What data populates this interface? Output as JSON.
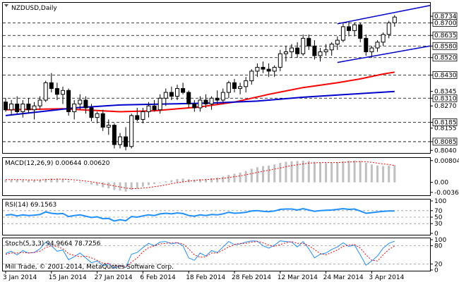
{
  "chart_data": [
    {
      "type": "candlestick",
      "title": "NZDUSD,Daily",
      "price_axis_ticks": [
        "0.8734",
        "0.8700",
        "0.8635",
        "0.8580",
        "0.8520",
        "0.8430",
        "0.8345",
        "0.8310",
        "0.8270",
        "0.8185",
        "0.8155",
        "0.8085",
        "0.8040"
      ],
      "highlighted_levels": [
        "0.8734",
        "0.8700",
        "0.8635",
        "0.8580",
        "0.8520",
        "0.8430",
        "0.8310",
        "0.8185",
        "0.8085"
      ],
      "horizontal_levels": [
        0.87,
        0.8635,
        0.858,
        0.852,
        0.843,
        0.831,
        0.8185,
        0.8085
      ],
      "ylim": [
        0.803,
        0.88
      ],
      "x_labels": [
        "3 Jan 2014",
        "15 Jan 2014",
        "27 Jan 2014",
        "6 Feb 2014",
        "18 Feb 2014",
        "28 Feb 2014",
        "12 Mar 2014",
        "24 Mar 2014",
        "3 Apr 2014"
      ],
      "x_label_index": [
        0,
        8,
        16,
        24,
        32,
        40,
        48,
        56,
        64
      ],
      "candles": [
        [
          0.829,
          0.831,
          0.824,
          0.825
        ],
        [
          0.825,
          0.83,
          0.822,
          0.828
        ],
        [
          0.828,
          0.832,
          0.823,
          0.824
        ],
        [
          0.824,
          0.83,
          0.821,
          0.828
        ],
        [
          0.828,
          0.831,
          0.823,
          0.825
        ],
        [
          0.825,
          0.829,
          0.82,
          0.827
        ],
        [
          0.827,
          0.832,
          0.825,
          0.83
        ],
        [
          0.83,
          0.84,
          0.829,
          0.839
        ],
        [
          0.839,
          0.844,
          0.834,
          0.836
        ],
        [
          0.836,
          0.839,
          0.83,
          0.833
        ],
        [
          0.833,
          0.837,
          0.828,
          0.835
        ],
        [
          0.835,
          0.836,
          0.822,
          0.824
        ],
        [
          0.824,
          0.83,
          0.82,
          0.828
        ],
        [
          0.828,
          0.833,
          0.825,
          0.83
        ],
        [
          0.83,
          0.832,
          0.823,
          0.826
        ],
        [
          0.826,
          0.828,
          0.819,
          0.821
        ],
        [
          0.821,
          0.824,
          0.818,
          0.823
        ],
        [
          0.823,
          0.825,
          0.814,
          0.816
        ],
        [
          0.816,
          0.82,
          0.812,
          0.817
        ],
        [
          0.817,
          0.818,
          0.805,
          0.807
        ],
        [
          0.807,
          0.813,
          0.805,
          0.811
        ],
        [
          0.811,
          0.816,
          0.804,
          0.806
        ],
        [
          0.806,
          0.823,
          0.805,
          0.822
        ],
        [
          0.822,
          0.826,
          0.819,
          0.82
        ],
        [
          0.82,
          0.826,
          0.818,
          0.824
        ],
        [
          0.824,
          0.829,
          0.821,
          0.827
        ],
        [
          0.827,
          0.83,
          0.824,
          0.825
        ],
        [
          0.825,
          0.833,
          0.823,
          0.831
        ],
        [
          0.831,
          0.836,
          0.827,
          0.834
        ],
        [
          0.834,
          0.837,
          0.83,
          0.832
        ],
        [
          0.832,
          0.838,
          0.83,
          0.836
        ],
        [
          0.836,
          0.839,
          0.833,
          0.834
        ],
        [
          0.834,
          0.835,
          0.826,
          0.828
        ],
        [
          0.828,
          0.83,
          0.824,
          0.826
        ],
        [
          0.826,
          0.832,
          0.824,
          0.83
        ],
        [
          0.83,
          0.833,
          0.826,
          0.828
        ],
        [
          0.828,
          0.832,
          0.825,
          0.831
        ],
        [
          0.831,
          0.835,
          0.828,
          0.83
        ],
        [
          0.83,
          0.836,
          0.828,
          0.834
        ],
        [
          0.834,
          0.84,
          0.831,
          0.839
        ],
        [
          0.839,
          0.841,
          0.834,
          0.836
        ],
        [
          0.836,
          0.839,
          0.833,
          0.837
        ],
        [
          0.837,
          0.842,
          0.834,
          0.84
        ],
        [
          0.84,
          0.846,
          0.838,
          0.845
        ],
        [
          0.845,
          0.849,
          0.842,
          0.847
        ],
        [
          0.847,
          0.85,
          0.844,
          0.846
        ],
        [
          0.846,
          0.849,
          0.842,
          0.845
        ],
        [
          0.845,
          0.848,
          0.842,
          0.847
        ],
        [
          0.847,
          0.856,
          0.845,
          0.854
        ],
        [
          0.854,
          0.858,
          0.85,
          0.855
        ],
        [
          0.855,
          0.859,
          0.852,
          0.857
        ],
        [
          0.857,
          0.86,
          0.852,
          0.854
        ],
        [
          0.854,
          0.864,
          0.853,
          0.862
        ],
        [
          0.862,
          0.864,
          0.856,
          0.858
        ],
        [
          0.858,
          0.861,
          0.851,
          0.853
        ],
        [
          0.853,
          0.857,
          0.85,
          0.855
        ],
        [
          0.855,
          0.859,
          0.853,
          0.856
        ],
        [
          0.856,
          0.86,
          0.853,
          0.859
        ],
        [
          0.859,
          0.863,
          0.856,
          0.861
        ],
        [
          0.861,
          0.87,
          0.86,
          0.868
        ],
        [
          0.868,
          0.871,
          0.863,
          0.866
        ],
        [
          0.866,
          0.87,
          0.863,
          0.869
        ],
        [
          0.869,
          0.87,
          0.86,
          0.862
        ],
        [
          0.862,
          0.864,
          0.853,
          0.855
        ],
        [
          0.855,
          0.858,
          0.852,
          0.857
        ],
        [
          0.857,
          0.861,
          0.855,
          0.86
        ],
        [
          0.86,
          0.865,
          0.858,
          0.864
        ],
        [
          0.864,
          0.871,
          0.862,
          0.87
        ],
        [
          0.87,
          0.874,
          0.868,
          0.873
        ]
      ],
      "trend_lines": [
        {
          "from": [
            58,
            0.8695
          ],
          "to": [
            75,
            0.879
          ]
        },
        {
          "from": [
            58,
            0.8495
          ],
          "to": [
            75,
            0.858
          ]
        }
      ],
      "moving_averages": [
        {
          "color": "#ff0000",
          "values": [
            [
              0,
              0.825
            ],
            [
              10,
              0.8255
            ],
            [
              20,
              0.824
            ],
            [
              26,
              0.8245
            ],
            [
              34,
              0.8265
            ],
            [
              40,
              0.829
            ],
            [
              46,
              0.833
            ],
            [
              52,
              0.8365
            ],
            [
              58,
              0.839
            ],
            [
              62,
              0.841
            ],
            [
              66,
              0.8435
            ],
            [
              68,
              0.8445
            ]
          ]
        },
        {
          "color": "#0000cc",
          "values": [
            [
              0,
              0.822
            ],
            [
              6,
              0.824
            ],
            [
              12,
              0.826
            ],
            [
              20,
              0.8275
            ],
            [
              28,
              0.828
            ],
            [
              36,
              0.8285
            ],
            [
              44,
              0.8295
            ],
            [
              52,
              0.8315
            ],
            [
              60,
              0.833
            ],
            [
              68,
              0.8345
            ]
          ]
        }
      ]
    },
    {
      "type": "bar",
      "title": "MACD(12,26,9) 0.00644 0.00620",
      "ticks": [
        "0.00804",
        "0.00",
        "-0.00368"
      ],
      "ylim": [
        -0.0045,
        0.0085
      ],
      "values": [
        0.001,
        0.0011,
        0.001,
        0.0009,
        0.0008,
        0.0008,
        0.0009,
        0.0013,
        0.0015,
        0.0014,
        0.0012,
        0.0006,
        0.0003,
        0.0002,
        -0.0002,
        -0.0008,
        -0.0012,
        -0.0018,
        -0.0022,
        -0.0028,
        -0.003,
        -0.0034,
        -0.0028,
        -0.0022,
        -0.0016,
        -0.001,
        -0.0006,
        -0.0002,
        0.0004,
        0.0008,
        0.0012,
        0.0014,
        0.0012,
        0.001,
        0.0012,
        0.0013,
        0.0016,
        0.0018,
        0.0022,
        0.0028,
        0.0032,
        0.0036,
        0.0042,
        0.005,
        0.0056,
        0.006,
        0.0062,
        0.0066,
        0.0072,
        0.0076,
        0.0078,
        0.0079,
        0.008,
        0.0079,
        0.0076,
        0.0073,
        0.0071,
        0.0072,
        0.0074,
        0.0078,
        0.008,
        0.0081,
        0.0079,
        0.0072,
        0.0066,
        0.0062,
        0.006,
        0.0062,
        0.0064
      ],
      "signal": [
        0.001,
        0.001,
        0.001,
        0.001,
        0.0009,
        0.0009,
        0.0009,
        0.001,
        0.0011,
        0.0012,
        0.0012,
        0.0011,
        0.0009,
        0.0007,
        0.0005,
        0.0002,
        -0.0001,
        -0.0005,
        -0.0009,
        -0.0013,
        -0.0017,
        -0.0021,
        -0.0023,
        -0.0023,
        -0.0021,
        -0.0019,
        -0.0016,
        -0.0013,
        -0.0009,
        -0.0005,
        -0.0001,
        0.0002,
        0.0005,
        0.0007,
        0.0009,
        0.001,
        0.0012,
        0.0013,
        0.0015,
        0.0018,
        0.0021,
        0.0024,
        0.0028,
        0.0032,
        0.0037,
        0.0041,
        0.0045,
        0.0049,
        0.0053,
        0.0058,
        0.0062,
        0.0065,
        0.0068,
        0.0071,
        0.0072,
        0.0073,
        0.0073,
        0.0073,
        0.0073,
        0.0074,
        0.0075,
        0.0076,
        0.0077,
        0.0076,
        0.0074,
        0.0071,
        0.0068,
        0.0066,
        0.0062
      ]
    },
    {
      "type": "line",
      "title": "RSI(14) 69.1563",
      "ticks": [
        "100",
        "70",
        "50",
        "30",
        "0"
      ],
      "ylim": [
        0,
        100
      ],
      "levels": [
        70,
        50,
        30
      ],
      "values": [
        56,
        58,
        54,
        57,
        55,
        56,
        58,
        66,
        62,
        60,
        61,
        52,
        55,
        57,
        53,
        49,
        51,
        45,
        46,
        38,
        42,
        39,
        52,
        50,
        54,
        57,
        55,
        60,
        62,
        60,
        63,
        61,
        55,
        53,
        57,
        55,
        58,
        57,
        60,
        65,
        62,
        63,
        65,
        69,
        70,
        68,
        67,
        69,
        74,
        75,
        75,
        72,
        76,
        72,
        68,
        70,
        71,
        72,
        74,
        76,
        74,
        75,
        69,
        62,
        64,
        66,
        68,
        69,
        69
      ]
    },
    {
      "type": "line",
      "title": "Stoch(5,3,3) 94.9664 78.7256",
      "ticks": [
        "100",
        "80",
        "20",
        "0"
      ],
      "ylim": [
        0,
        100
      ],
      "levels": [
        80,
        20
      ],
      "series": [
        {
          "color": "#1e90ff",
          "values": [
            55,
            62,
            50,
            64,
            56,
            58,
            70,
            92,
            80,
            62,
            66,
            34,
            44,
            56,
            40,
            24,
            30,
            14,
            20,
            6,
            16,
            8,
            52,
            58,
            74,
            88,
            80,
            92,
            94,
            86,
            90,
            80,
            40,
            32,
            56,
            46,
            64,
            58,
            76,
            94,
            84,
            86,
            92,
            96,
            95,
            80,
            72,
            82,
            96,
            94,
            92,
            76,
            94,
            70,
            40,
            52,
            56,
            68,
            76,
            90,
            78,
            82,
            50,
            16,
            30,
            46,
            72,
            88,
            95
          ]
        },
        {
          "color": "#ff0000",
          "values": [
            52,
            56,
            56,
            58,
            56,
            58,
            62,
            74,
            80,
            78,
            70,
            54,
            48,
            44,
            46,
            40,
            32,
            22,
            22,
            14,
            14,
            10,
            26,
            40,
            60,
            74,
            80,
            86,
            88,
            90,
            90,
            86,
            70,
            50,
            42,
            44,
            56,
            56,
            66,
            76,
            84,
            88,
            88,
            92,
            94,
            90,
            82,
            78,
            84,
            90,
            94,
            88,
            88,
            80,
            68,
            54,
            50,
            58,
            66,
            78,
            82,
            84,
            72,
            50,
            32,
            30,
            50,
            68,
            79
          ]
        }
      ]
    }
  ],
  "footer_text": "Mill Trade, © 2001-2014, MetaQuotes Software Corp."
}
